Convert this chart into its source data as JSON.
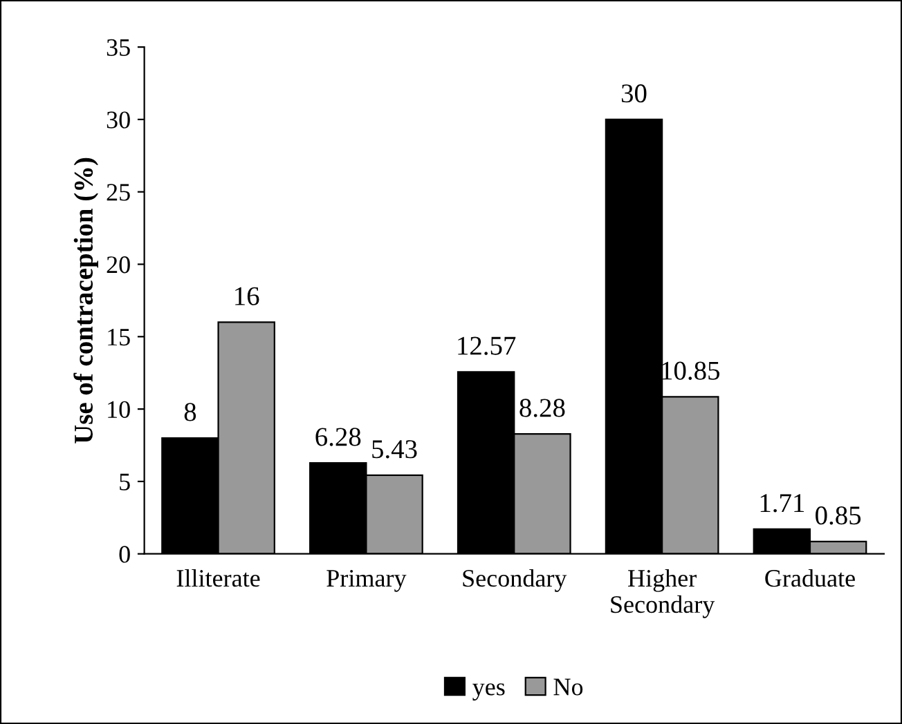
{
  "chart_data": {
    "type": "bar",
    "ylabel": "Use of contraception (%)",
    "categories": [
      "Illiterate",
      "Primary",
      "Secondary",
      "Higher Secondary",
      "Graduate"
    ],
    "series": [
      {
        "name": "yes",
        "color": "#000000",
        "values": [
          8,
          6.28,
          12.57,
          30,
          1.71
        ]
      },
      {
        "name": "No",
        "color": "#999999",
        "values": [
          16,
          5.43,
          8.28,
          10.85,
          0.85
        ]
      }
    ],
    "ylim": [
      0,
      35
    ],
    "yticks": [
      0,
      5,
      10,
      15,
      20,
      25,
      30,
      35
    ],
    "grid": false,
    "legend": "bottom",
    "data_labels": true
  }
}
